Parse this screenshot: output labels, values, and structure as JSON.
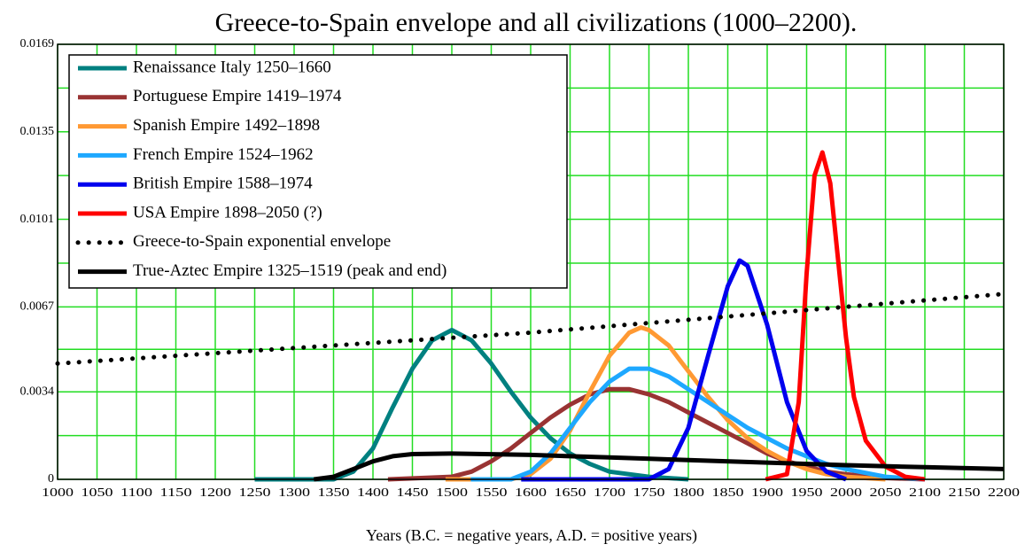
{
  "chart_data": {
    "type": "line",
    "title": "Greece-to-Spain envelope and all civilizations (1000–2200).",
    "x_label": "Years (B.C. = negative years, A.D. = positive years)",
    "xlim": [
      1000,
      2200
    ],
    "xticks": [
      1000,
      1050,
      1100,
      1150,
      1200,
      1250,
      1300,
      1350,
      1400,
      1450,
      1500,
      1550,
      1600,
      1650,
      1700,
      1750,
      1800,
      1850,
      1900,
      1950,
      2000,
      2050,
      2100,
      2150,
      2200
    ],
    "ylim": [
      0,
      0.0169
    ],
    "yticks": [
      0,
      0.0034,
      0.0067,
      0.0101,
      0.0135,
      0.0169
    ],
    "y_minor_ticks": [
      0.0017,
      0.00505,
      0.0084,
      0.0118,
      0.0152
    ],
    "grid": true,
    "grid_color": "#22dd22",
    "legend": "upper left",
    "series": [
      {
        "name": "Renaissance Italy 1250–1660",
        "color": "#008080",
        "style": "solid",
        "x": [
          1250,
          1350,
          1375,
          1400,
          1425,
          1450,
          1475,
          1500,
          1525,
          1550,
          1575,
          1600,
          1625,
          1650,
          1675,
          1700,
          1750,
          1800
        ],
        "values": [
          0,
          0,
          0.0003,
          0.0012,
          0.0028,
          0.0043,
          0.0054,
          0.0058,
          0.0054,
          0.0045,
          0.0034,
          0.0024,
          0.0016,
          0.001,
          0.0006,
          0.0003,
          0.0001,
          0
        ]
      },
      {
        "name": "Portuguese Empire 1419–1974",
        "color": "#993333",
        "style": "solid",
        "x": [
          1419,
          1500,
          1525,
          1550,
          1575,
          1600,
          1625,
          1650,
          1675,
          1700,
          1725,
          1750,
          1775,
          1800,
          1825,
          1850,
          1875,
          1900,
          1925,
          1950,
          1975,
          2000,
          2050,
          2100
        ],
        "values": [
          0,
          0.0001,
          0.0003,
          0.0007,
          0.0012,
          0.0018,
          0.0024,
          0.0029,
          0.0033,
          0.0035,
          0.0035,
          0.0033,
          0.003,
          0.0026,
          0.0022,
          0.0018,
          0.0014,
          0.001,
          0.0007,
          0.0005,
          0.0003,
          0.0002,
          5e-05,
          0
        ]
      },
      {
        "name": "Spanish Empire 1492–1898",
        "color": "#ff9933",
        "style": "solid",
        "x": [
          1492,
          1575,
          1600,
          1625,
          1650,
          1675,
          1700,
          1725,
          1740,
          1750,
          1775,
          1800,
          1825,
          1850,
          1875,
          1900,
          1925,
          1950,
          1975,
          2000,
          2050
        ],
        "values": [
          0,
          0,
          0.0002,
          0.0008,
          0.0019,
          0.0034,
          0.0048,
          0.0057,
          0.0059,
          0.0058,
          0.0052,
          0.0042,
          0.0032,
          0.0023,
          0.0016,
          0.0011,
          0.0007,
          0.0004,
          0.0002,
          0.0001,
          0
        ]
      },
      {
        "name": "French Empire 1524–1962",
        "color": "#1ea8ff",
        "style": "solid",
        "x": [
          1524,
          1575,
          1600,
          1625,
          1650,
          1675,
          1700,
          1725,
          1750,
          1775,
          1800,
          1825,
          1850,
          1875,
          1900,
          1925,
          1950,
          1975,
          2000,
          2050,
          2100
        ],
        "values": [
          0,
          0,
          0.0003,
          0.001,
          0.002,
          0.003,
          0.0038,
          0.0043,
          0.0043,
          0.004,
          0.0035,
          0.003,
          0.0025,
          0.002,
          0.0016,
          0.0012,
          0.0009,
          0.0006,
          0.0004,
          0.0001,
          0
        ]
      },
      {
        "name": "British Empire 1588–1974",
        "color": "#0000ee",
        "style": "solid",
        "x": [
          1588,
          1750,
          1775,
          1800,
          1825,
          1850,
          1865,
          1875,
          1900,
          1925,
          1950,
          1975,
          2000
        ],
        "values": [
          0,
          0,
          0.0004,
          0.002,
          0.0048,
          0.0075,
          0.0085,
          0.0083,
          0.006,
          0.003,
          0.0011,
          0.0003,
          0
        ]
      },
      {
        "name": "USA Empire 1898–2050 (?)",
        "color": "#ff0000",
        "style": "solid",
        "x": [
          1898,
          1925,
          1940,
          1950,
          1960,
          1970,
          1980,
          1990,
          2000,
          2010,
          2025,
          2050,
          2075,
          2100
        ],
        "values": [
          0,
          0.0002,
          0.003,
          0.008,
          0.0118,
          0.0127,
          0.0115,
          0.0085,
          0.0055,
          0.0032,
          0.0015,
          0.0005,
          0.0001,
          0
        ]
      },
      {
        "name": "Greece-to-Spain exponential envelope",
        "color": "#000000",
        "style": "dotted",
        "x": [
          1000,
          1200,
          1400,
          1600,
          1800,
          2000,
          2200
        ],
        "values": [
          0.0045,
          0.0049,
          0.0053,
          0.0057,
          0.0062,
          0.0067,
          0.0072
        ]
      },
      {
        "name": "True-Aztec Empire 1325–1519 (peak and end)",
        "color": "#000000",
        "style": "solid",
        "x": [
          1325,
          1350,
          1375,
          1400,
          1425,
          1450,
          1500,
          1600,
          1700,
          1800,
          1900,
          2000,
          2100,
          2200
        ],
        "values": [
          0,
          0.0001,
          0.0004,
          0.0007,
          0.0009,
          0.00098,
          0.001,
          0.00095,
          0.00085,
          0.00075,
          0.00065,
          0.00055,
          0.00047,
          0.0004
        ]
      }
    ]
  }
}
